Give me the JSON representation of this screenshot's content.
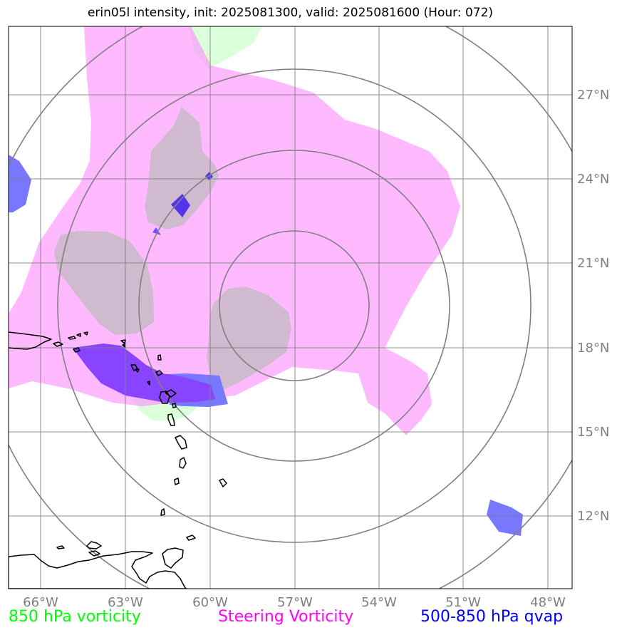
{
  "title": "erin05l intensity, init: 2025081300, valid: 2025081600 (Hour: 072)",
  "longitude_labels": [
    "66°W",
    "63°W",
    "60°W",
    "57°W",
    "54°W",
    "51°W",
    "48°W"
  ],
  "latitude_labels": [
    "27°N",
    "24°N",
    "21°N",
    "18°N",
    "15°N",
    "12°N"
  ],
  "legend": {
    "vort850": "850 hPa vorticity",
    "steering": "Steering Vorticity",
    "qvap": "500-850 hPa qvap"
  },
  "colors": {
    "vort850": "#00ff00",
    "steering": "#ff00ff",
    "qvap": "#0000ff",
    "grid": "#808080",
    "coast": "#000000"
  }
}
